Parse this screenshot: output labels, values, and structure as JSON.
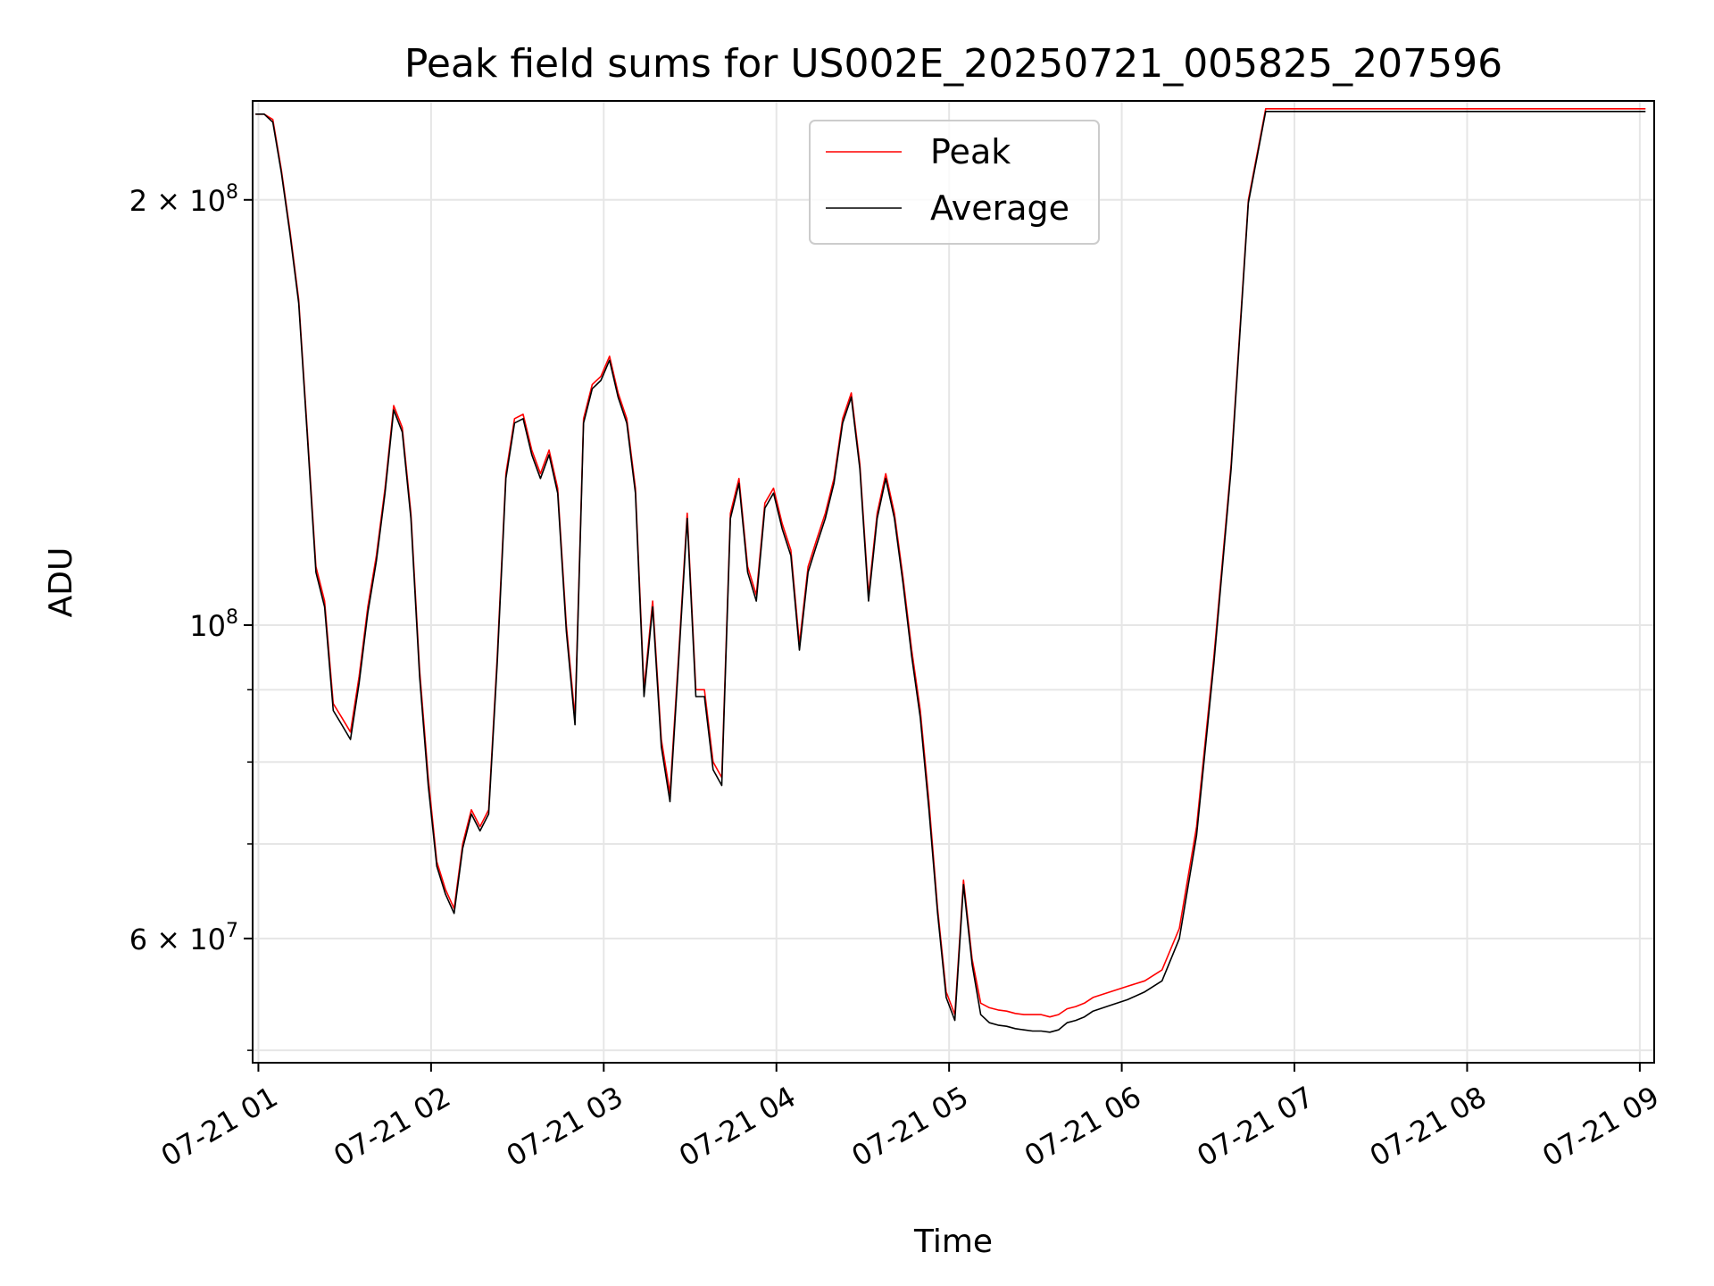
{
  "chart_data": {
    "type": "line",
    "title": "Peak field sums for US002E_20250721_005825_207596",
    "xlabel": "Time",
    "ylabel": "ADU",
    "yscale": "log",
    "grid": true,
    "legend_position": "top-center",
    "xlim": [
      "07-21 00:58",
      "07-21 09:05"
    ],
    "ylim": [
      49000000,
      235000000
    ],
    "x_ticks": [
      "07-21 01",
      "07-21 02",
      "07-21 03",
      "07-21 04",
      "07-21 05",
      "07-21 06",
      "07-21 07",
      "07-21 08",
      "07-21 09"
    ],
    "y_ticks": [
      {
        "value": 60000000,
        "label_base": "6 × 10",
        "label_exp": "7"
      },
      {
        "value": 100000000,
        "label_base": "10",
        "label_exp": "8"
      },
      {
        "value": 200000000,
        "label_base": "2 × 10",
        "label_exp": "8"
      }
    ],
    "y_minor_ticks": [
      50000000,
      70000000,
      80000000,
      90000000
    ],
    "x": [
      "00:59",
      "01:02",
      "01:05",
      "01:08",
      "01:11",
      "01:14",
      "01:17",
      "01:20",
      "01:23",
      "01:26",
      "01:29",
      "01:32",
      "01:35",
      "01:38",
      "01:41",
      "01:44",
      "01:47",
      "01:50",
      "01:53",
      "01:56",
      "01:59",
      "02:02",
      "02:05",
      "02:08",
      "02:11",
      "02:14",
      "02:17",
      "02:20",
      "02:23",
      "02:26",
      "02:29",
      "02:32",
      "02:35",
      "02:38",
      "02:41",
      "02:44",
      "02:47",
      "02:50",
      "02:53",
      "02:56",
      "02:59",
      "03:02",
      "03:05",
      "03:08",
      "03:11",
      "03:14",
      "03:17",
      "03:20",
      "03:23",
      "03:26",
      "03:29",
      "03:32",
      "03:35",
      "03:38",
      "03:41",
      "03:44",
      "03:47",
      "03:50",
      "03:53",
      "03:56",
      "03:59",
      "04:02",
      "04:05",
      "04:08",
      "04:11",
      "04:14",
      "04:17",
      "04:20",
      "04:23",
      "04:26",
      "04:29",
      "04:32",
      "04:35",
      "04:38",
      "04:41",
      "04:44",
      "04:47",
      "04:50",
      "04:53",
      "04:56",
      "04:59",
      "05:02",
      "05:05",
      "05:08",
      "05:11",
      "05:14",
      "05:17",
      "05:20",
      "05:23",
      "05:26",
      "05:29",
      "05:32",
      "05:35",
      "05:38",
      "05:41",
      "05:44",
      "05:47",
      "05:50",
      "05:56",
      "06:02",
      "06:08",
      "06:14",
      "06:20",
      "06:26",
      "06:32",
      "06:38",
      "06:44",
      "06:50",
      "06:56",
      "07:02",
      "07:08",
      "07:14",
      "07:20",
      "07:26",
      "07:32",
      "07:38",
      "07:44",
      "07:50",
      "07:56",
      "08:02",
      "08:08",
      "08:14",
      "08:20",
      "08:26",
      "08:29",
      "08:32",
      "08:35",
      "08:38",
      "08:41",
      "08:44",
      "08:47",
      "08:50",
      "08:53",
      "08:56",
      "08:59",
      "09:02"
    ],
    "series": [
      {
        "name": "Peak",
        "color": "#ff0000",
        "values": [
          230000000,
          230000000,
          228000000,
          210000000,
          190000000,
          170000000,
          137000000,
          110000000,
          104000000,
          88000000,
          86000000,
          84000000,
          92000000,
          103000000,
          112000000,
          125000000,
          143000000,
          138000000,
          120000000,
          93000000,
          78000000,
          68000000,
          65000000,
          63000000,
          70000000,
          74000000,
          72000000,
          74000000,
          95000000,
          128000000,
          140000000,
          141000000,
          133000000,
          128000000,
          133000000,
          125000000,
          100000000,
          86000000,
          140000000,
          148000000,
          150000000,
          155000000,
          146000000,
          140000000,
          125000000,
          90000000,
          104000000,
          83000000,
          76000000,
          95000000,
          120000000,
          90000000,
          90000000,
          80000000,
          78000000,
          120000000,
          127000000,
          110000000,
          105000000,
          122000000,
          125000000,
          118000000,
          113000000,
          97000000,
          110000000,
          115000000,
          120000000,
          127000000,
          140000000,
          146000000,
          130000000,
          105000000,
          120000000,
          128000000,
          120000000,
          108000000,
          96000000,
          87000000,
          75000000,
          63000000,
          55000000,
          53000000,
          66000000,
          58000000,
          54000000,
          53600000,
          53400000,
          53300000,
          53100000,
          53000000,
          53000000,
          53000000,
          52800000,
          53000000,
          53500000,
          53700000,
          54000000,
          54500000,
          55000000,
          55500000,
          56000000,
          57000000,
          61000000,
          72000000,
          95000000,
          130000000,
          200000000,
          232000000,
          232000000,
          232000000,
          232000000,
          232000000,
          232000000,
          232000000,
          232000000,
          232000000,
          232000000,
          232000000,
          232000000,
          232000000,
          232000000,
          232000000,
          232000000,
          232000000,
          232000000,
          232000000,
          232000000,
          232000000,
          232000000,
          232000000,
          232000000,
          232000000,
          232000000,
          232000000,
          232000000,
          232000000
        ]
      },
      {
        "name": "Average",
        "color": "#000000",
        "values": [
          230000000,
          230000000,
          227000000,
          209000000,
          189000000,
          169000000,
          136000000,
          109000000,
          103000000,
          87000000,
          85000000,
          83000000,
          91000000,
          102000000,
          111000000,
          124000000,
          142000000,
          137000000,
          119000000,
          92000000,
          77000000,
          67500000,
          64500000,
          62500000,
          69500000,
          73500000,
          71500000,
          73500000,
          94000000,
          127000000,
          139000000,
          140000000,
          132000000,
          127000000,
          132000000,
          124000000,
          99000000,
          85000000,
          139000000,
          147000000,
          149000000,
          154000000,
          145000000,
          139000000,
          124000000,
          89000000,
          103000000,
          82000000,
          75000000,
          94000000,
          119000000,
          89000000,
          89000000,
          79000000,
          77000000,
          119000000,
          126000000,
          109000000,
          104000000,
          121000000,
          124000000,
          117000000,
          112000000,
          96000000,
          109000000,
          114000000,
          119000000,
          126000000,
          139000000,
          145000000,
          129000000,
          104000000,
          119000000,
          127000000,
          119000000,
          107000000,
          95000000,
          86000000,
          74000000,
          62500000,
          54500000,
          52500000,
          65500000,
          57500000,
          53000000,
          52300000,
          52100000,
          52000000,
          51800000,
          51700000,
          51600000,
          51600000,
          51500000,
          51700000,
          52300000,
          52500000,
          52800000,
          53300000,
          53800000,
          54300000,
          55000000,
          56000000,
          60000000,
          71000000,
          94000000,
          129000000,
          199000000,
          231000000,
          231000000,
          231000000,
          231000000,
          231000000,
          231000000,
          231000000,
          231000000,
          231000000,
          231000000,
          231000000,
          231000000,
          231000000,
          231000000,
          231000000,
          231000000,
          231000000,
          231000000,
          231000000,
          231000000,
          231000000,
          231000000,
          231000000,
          231000000,
          231000000,
          231000000,
          231000000,
          231000000,
          231000000
        ]
      }
    ]
  }
}
